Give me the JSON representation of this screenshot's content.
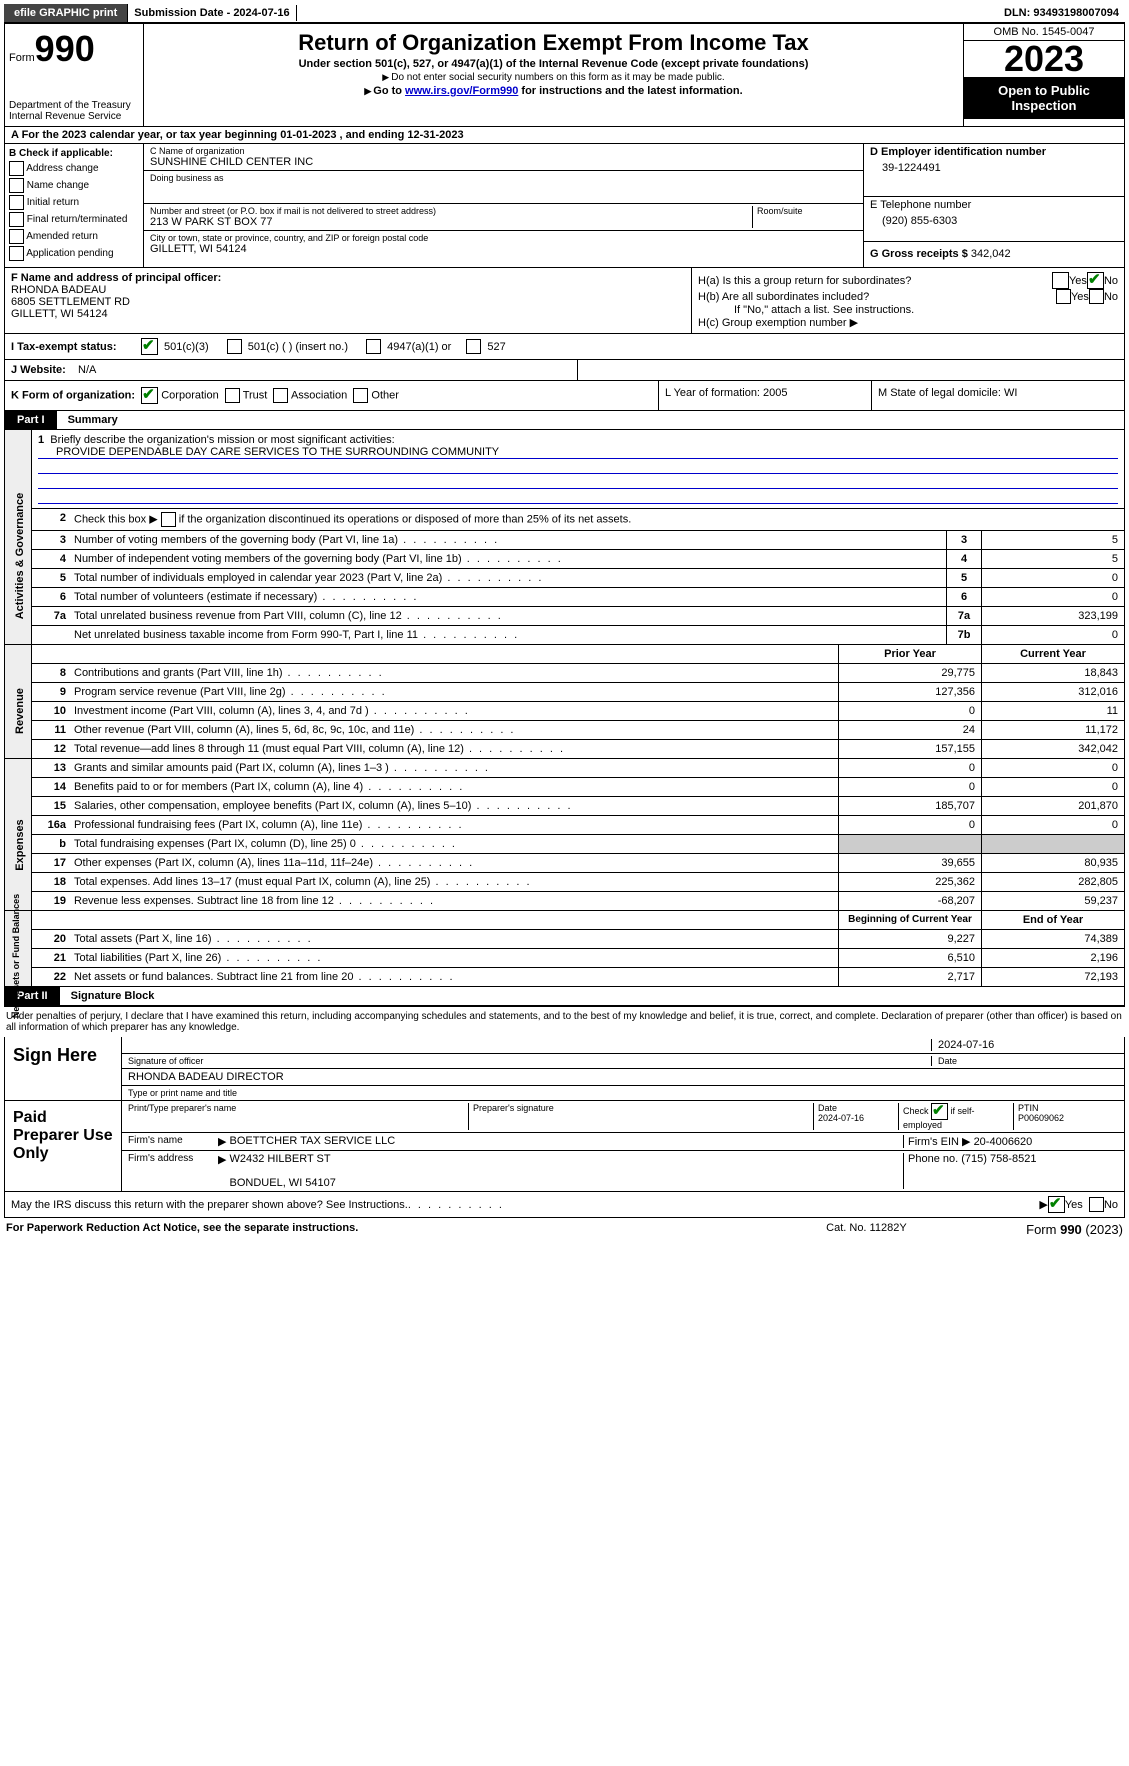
{
  "top": {
    "efile": "efile GRAPHIC print",
    "submission_label": "Submission Date - 2024-07-16",
    "dln_label": "DLN: 93493198007094"
  },
  "header": {
    "form_word": "Form",
    "form_num": "990",
    "title": "Return of Organization Exempt From Income Tax",
    "subtitle": "Under section 501(c), 527, or 4947(a)(1) of the Internal Revenue Code (except private foundations)",
    "ssn_note": "Do not enter social security numbers on this form as it may be made public.",
    "goto": "Go to ",
    "goto_link": "www.irs.gov/Form990",
    "goto_rest": " for instructions and the latest information.",
    "dept": "Department of the Treasury",
    "irs": "Internal Revenue Service",
    "omb": "OMB No. 1545-0047",
    "year": "2023",
    "inspection": "Open to Public Inspection"
  },
  "row_a": "A For the 2023 calendar year, or tax year beginning 01-01-2023   , and ending 12-31-2023",
  "box_b": {
    "label": "B Check if applicable:",
    "opts": [
      "Address change",
      "Name change",
      "Initial return",
      "Final return/terminated",
      "Amended return",
      "Application pending"
    ]
  },
  "box_c": {
    "name_label": "C Name of organization",
    "name": "SUNSHINE CHILD CENTER INC",
    "dba_label": "Doing business as",
    "street_label": "Number and street (or P.O. box if mail is not delivered to street address)",
    "room_label": "Room/suite",
    "street": "213 W PARK ST BOX 77",
    "city_label": "City or town, state or province, country, and ZIP or foreign postal code",
    "city": "GILLETT, WI  54124"
  },
  "box_d": {
    "label": "D Employer identification number",
    "value": "39-1224491"
  },
  "box_e": {
    "label": "E Telephone number",
    "value": "(920) 855-6303"
  },
  "box_g": {
    "label": "G Gross receipts $",
    "value": "342,042"
  },
  "box_f": {
    "label": "F  Name and address of principal officer:",
    "name": "RHONDA BADEAU",
    "street": "6805 SETTLEMENT RD",
    "city": "GILLETT, WI  54124"
  },
  "box_h": {
    "a": "H(a)  Is this a group return for subordinates?",
    "b": "H(b)  Are all subordinates included?",
    "note": "If \"No,\" attach a list. See instructions.",
    "c": "H(c)  Group exemption number",
    "yes": "Yes",
    "no": "No"
  },
  "status": {
    "label": "I   Tax-exempt status:",
    "o1": "501(c)(3)",
    "o2": "501(c) (  ) (insert no.)",
    "o3": "4947(a)(1) or",
    "o4": "527"
  },
  "website": {
    "label": "J   Website:",
    "value": "N/A"
  },
  "k": {
    "label": "K Form of organization:",
    "o1": "Corporation",
    "o2": "Trust",
    "o3": "Association",
    "o4": "Other"
  },
  "l": {
    "text": "L Year of formation: 2005"
  },
  "m": {
    "text": "M State of legal domicile: WI"
  },
  "parts": {
    "p1": "Part I",
    "p1_title": "Summary",
    "p2": "Part II",
    "p2_title": "Signature Block"
  },
  "summary": {
    "q1": "Briefly describe the organization's mission or most significant activities:",
    "mission": "PROVIDE DEPENDABLE DAY CARE SERVICES TO THE SURROUNDING COMMUNITY",
    "q2": "Check this box      if the organization discontinued its operations or disposed of more than 25% of its net assets.",
    "lines": [
      {
        "n": "3",
        "t": "Number of voting members of the governing body (Part VI, line 1a)",
        "b": "3",
        "v": "5"
      },
      {
        "n": "4",
        "t": "Number of independent voting members of the governing body (Part VI, line 1b)",
        "b": "4",
        "v": "5"
      },
      {
        "n": "5",
        "t": "Total number of individuals employed in calendar year 2023 (Part V, line 2a)",
        "b": "5",
        "v": "0"
      },
      {
        "n": "6",
        "t": "Total number of volunteers (estimate if necessary)",
        "b": "6",
        "v": "0"
      },
      {
        "n": "7a",
        "t": "Total unrelated business revenue from Part VIII, column (C), line 12",
        "b": "7a",
        "v": "323,199"
      },
      {
        "n": "",
        "t": "Net unrelated business taxable income from Form 990-T, Part I, line 11",
        "b": "7b",
        "v": "0"
      }
    ],
    "col_prior": "Prior Year",
    "col_current": "Current Year",
    "revenue": [
      {
        "n": "8",
        "t": "Contributions and grants (Part VIII, line 1h)",
        "p": "29,775",
        "c": "18,843"
      },
      {
        "n": "9",
        "t": "Program service revenue (Part VIII, line 2g)",
        "p": "127,356",
        "c": "312,016"
      },
      {
        "n": "10",
        "t": "Investment income (Part VIII, column (A), lines 3, 4, and 7d )",
        "p": "0",
        "c": "11"
      },
      {
        "n": "11",
        "t": "Other revenue (Part VIII, column (A), lines 5, 6d, 8c, 9c, 10c, and 11e)",
        "p": "24",
        "c": "11,172"
      },
      {
        "n": "12",
        "t": "Total revenue—add lines 8 through 11 (must equal Part VIII, column (A), line 12)",
        "p": "157,155",
        "c": "342,042"
      }
    ],
    "expenses": [
      {
        "n": "13",
        "t": "Grants and similar amounts paid (Part IX, column (A), lines 1–3 )",
        "p": "0",
        "c": "0"
      },
      {
        "n": "14",
        "t": "Benefits paid to or for members (Part IX, column (A), line 4)",
        "p": "0",
        "c": "0"
      },
      {
        "n": "15",
        "t": "Salaries, other compensation, employee benefits (Part IX, column (A), lines 5–10)",
        "p": "185,707",
        "c": "201,870"
      },
      {
        "n": "16a",
        "t": "Professional fundraising fees (Part IX, column (A), line 11e)",
        "p": "0",
        "c": "0"
      },
      {
        "n": "b",
        "t": "Total fundraising expenses (Part IX, column (D), line 25) 0",
        "p": "",
        "c": "",
        "grey": true
      },
      {
        "n": "17",
        "t": "Other expenses (Part IX, column (A), lines 11a–11d, 11f–24e)",
        "p": "39,655",
        "c": "80,935"
      },
      {
        "n": "18",
        "t": "Total expenses. Add lines 13–17 (must equal Part IX, column (A), line 25)",
        "p": "225,362",
        "c": "282,805"
      },
      {
        "n": "19",
        "t": "Revenue less expenses. Subtract line 18 from line 12",
        "p": "-68,207",
        "c": "59,237"
      }
    ],
    "col_begin": "Beginning of Current Year",
    "col_end": "End of Year",
    "netassets": [
      {
        "n": "20",
        "t": "Total assets (Part X, line 16)",
        "p": "9,227",
        "c": "74,389"
      },
      {
        "n": "21",
        "t": "Total liabilities (Part X, line 26)",
        "p": "6,510",
        "c": "2,196"
      },
      {
        "n": "22",
        "t": "Net assets or fund balances. Subtract line 21 from line 20",
        "p": "2,717",
        "c": "72,193"
      }
    ],
    "vtabs": {
      "gov": "Activities & Governance",
      "rev": "Revenue",
      "exp": "Expenses",
      "net": "Net Assets or Fund Balances"
    }
  },
  "penalty": "Under penalties of perjury, I declare that I have examined this return, including accompanying schedules and statements, and to the best of my knowledge and belief, it is true, correct, and complete. Declaration of preparer (other than officer) is based on all information of which preparer has any knowledge.",
  "sign": {
    "here": "Sign Here",
    "date": "2024-07-16",
    "sig_label": "Signature of officer",
    "officer": "RHONDA BADEAU  DIRECTOR",
    "type_label": "Type or print name and title",
    "date_label": "Date"
  },
  "paid": {
    "label": "Paid Preparer Use Only",
    "col1": "Print/Type preparer's name",
    "col2": "Preparer's signature",
    "col3_label": "Date",
    "col3": "2024-07-16",
    "col4": "Check        if self-employed",
    "col5_label": "PTIN",
    "col5": "P00609062",
    "firm_label": "Firm's name",
    "firm": "BOETTCHER TAX SERVICE LLC",
    "ein_label": "Firm's EIN",
    "ein": "20-4006620",
    "addr_label": "Firm's address",
    "addr1": "W2432 HILBERT ST",
    "addr2": "BONDUEL, WI  54107",
    "phone_label": "Phone no.",
    "phone": "(715) 758-8521"
  },
  "discuss": "May the IRS discuss this return with the preparer shown above? See Instructions.",
  "footer": {
    "paperwork": "For Paperwork Reduction Act Notice, see the separate instructions.",
    "cat": "Cat. No. 11282Y",
    "form": "Form 990 (2023)"
  }
}
